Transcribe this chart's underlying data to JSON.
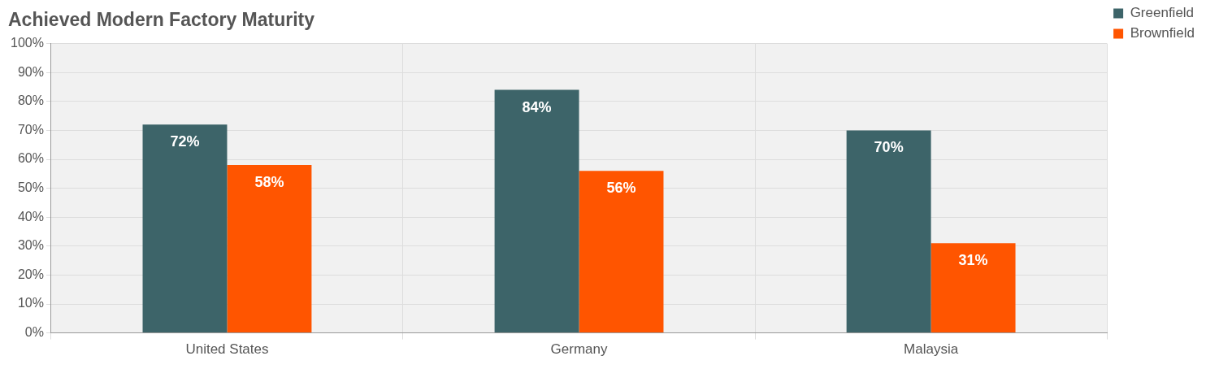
{
  "chart_data": {
    "type": "bar",
    "title": "Achieved Modern Factory Maturity",
    "categories": [
      "United States",
      "Germany",
      "Malaysia"
    ],
    "series": [
      {
        "name": "Greenfield",
        "color": "#3d6469",
        "values": [
          72,
          84,
          70
        ],
        "value_labels": [
          "72%",
          "84%",
          "70%"
        ]
      },
      {
        "name": "Brownfield",
        "color": "#ff5500",
        "values": [
          58,
          56,
          31
        ],
        "value_labels": [
          "58%",
          "56%",
          "31%"
        ]
      }
    ],
    "ylim": [
      0,
      100
    ],
    "yticks": [
      {
        "value": 0,
        "label": "0%"
      },
      {
        "value": 10,
        "label": "10%"
      },
      {
        "value": 20,
        "label": "20%"
      },
      {
        "value": 30,
        "label": "30%"
      },
      {
        "value": 40,
        "label": "40%"
      },
      {
        "value": 50,
        "label": "50%"
      },
      {
        "value": 60,
        "label": "60%"
      },
      {
        "value": 70,
        "label": "70%"
      },
      {
        "value": 80,
        "label": "80%"
      },
      {
        "value": 90,
        "label": "90%"
      },
      {
        "value": 100,
        "label": "100%"
      }
    ],
    "grid": true,
    "legend": "top right"
  }
}
